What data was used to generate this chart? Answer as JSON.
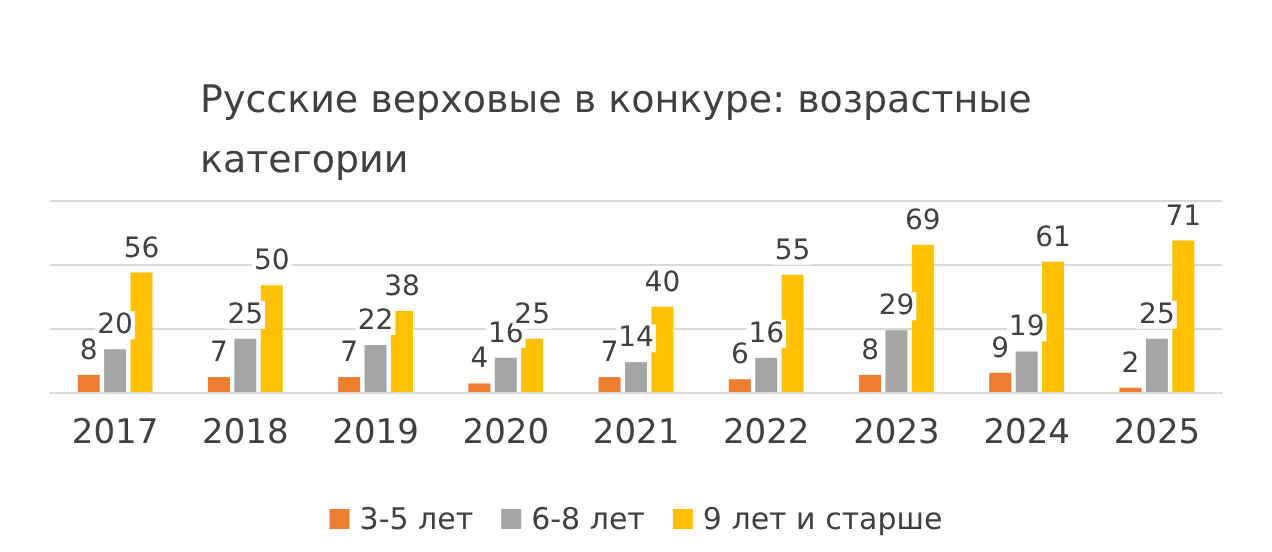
{
  "chart_data": {
    "type": "bar",
    "title": "Русские верховые в конкуре: возрастные\nкатегории",
    "categories": [
      "2017",
      "2018",
      "2019",
      "2020",
      "2021",
      "2022",
      "2023",
      "2024",
      "2025"
    ],
    "series": [
      {
        "name": "3-5 лет",
        "color": "#ed7d31",
        "values": [
          8,
          7,
          7,
          4,
          7,
          6,
          8,
          9,
          2
        ]
      },
      {
        "name": "6-8 лет",
        "color": "#a5a5a5",
        "values": [
          20,
          25,
          22,
          16,
          14,
          16,
          29,
          19,
          25
        ]
      },
      {
        "name": "9 лет и старше",
        "color": "#ffc000",
        "values": [
          56,
          50,
          38,
          25,
          40,
          55,
          69,
          61,
          71
        ]
      }
    ],
    "ylim": [
      0,
      90
    ],
    "yticks": [
      {
        "value": 0,
        "label": null
      },
      {
        "value": 30,
        "label": null
      },
      {
        "value": 60,
        "label": null
      },
      {
        "value": 90,
        "label": null
      }
    ],
    "tick_labels": "x",
    "grid": "y",
    "legend": "bottom",
    "data_labels": true
  }
}
